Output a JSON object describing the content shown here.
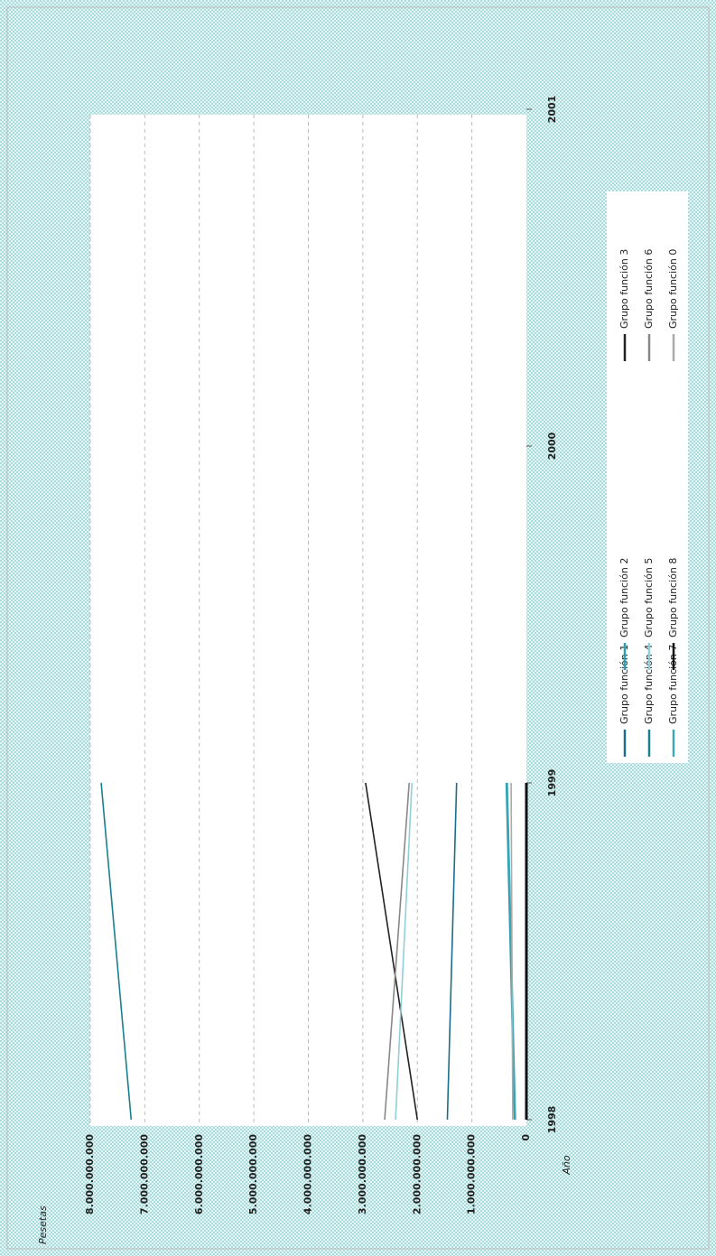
{
  "chart_data": {
    "type": "line",
    "title": "Pesetas",
    "x_label": "Año",
    "x": [
      1998,
      1999,
      2000,
      2001
    ],
    "xlim": [
      1998,
      2001
    ],
    "xticks": [
      1998,
      1999,
      2000,
      2001
    ],
    "ylim": [
      0,
      8000000000
    ],
    "yticks": [
      0,
      {
        "value": 1000000000,
        "label": "1.000.000.000"
      },
      {
        "value": 2000000000,
        "label": "2.000.000.000"
      },
      {
        "value": 3000000000,
        "label": "3.000.000.000"
      },
      {
        "value": 4000000000,
        "label": "4.000.000.000"
      },
      {
        "value": 5000000000,
        "label": "5.000.000.000"
      },
      {
        "value": 6000000000,
        "label": "6.000.000.000"
      },
      {
        "value": 7000000000,
        "label": "7.000.000.000"
      },
      {
        "value": 8000000000,
        "label": "8.000.000.000"
      }
    ],
    "grid": true,
    "series": [
      {
        "name": "Grupo función 1",
        "color": "#1a6e8a",
        "values": [
          1450000000,
          1280000000,
          null,
          null
        ]
      },
      {
        "name": "Grupo función 2",
        "color": "#2aa0b0",
        "values": [
          220000000,
          370000000,
          null,
          null
        ]
      },
      {
        "name": "Grupo función 3",
        "color": "#222222",
        "values": [
          2000000000,
          2950000000,
          null,
          null
        ]
      },
      {
        "name": "Grupo función 4",
        "color": "#1a8090",
        "values": [
          7250000000,
          7800000000,
          null,
          null
        ]
      },
      {
        "name": "Grupo función 5",
        "color": "#8fd0d8",
        "values": [
          2400000000,
          2100000000,
          null,
          null
        ]
      },
      {
        "name": "Grupo función 6",
        "color": "#888888",
        "values": [
          2600000000,
          2150000000,
          null,
          null
        ]
      },
      {
        "name": "Grupo función 7",
        "color": "#3aa8b8",
        "values": [
          200000000,
          350000000,
          null,
          null
        ]
      },
      {
        "name": "Grupo función 8",
        "color": "#111111",
        "values": [
          0,
          0,
          null,
          null
        ]
      },
      {
        "name": "Grupo función 0",
        "color": "#aaaaaa",
        "values": [
          250000000,
          280000000,
          null,
          null
        ]
      }
    ]
  }
}
